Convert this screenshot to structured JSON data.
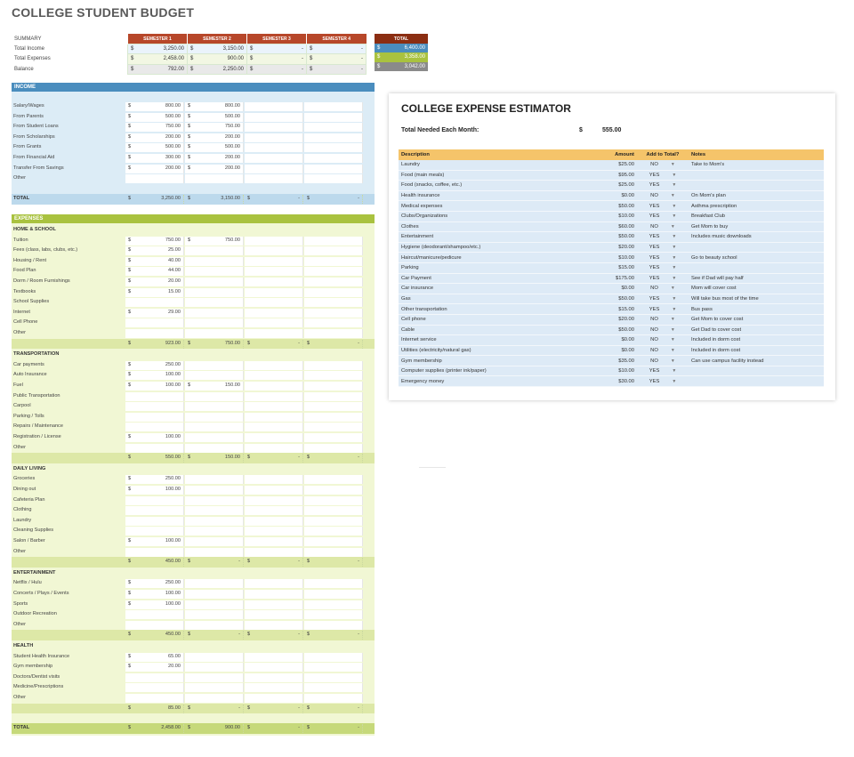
{
  "title": "COLLEGE STUDENT BUDGET",
  "currency": "$",
  "colors": {
    "semester_header": "#b7472a",
    "total_header": "#8b2e12",
    "income": "#4a8dbe",
    "expenses": "#a9c23f",
    "income_bg": "#dcecf6",
    "expenses_bg": "#f1f7d4",
    "sub_bg": "#dde8a7",
    "estimator_header": "#f5c46a",
    "estimator_row": "#ddeaf6"
  },
  "summary": {
    "label": "SUMMARY",
    "semesters": [
      "SEMESTER 1",
      "SEMESTER 2",
      "SEMESTER 3",
      "SEMESTER 4"
    ],
    "total_label": "TOTAL",
    "rows": [
      {
        "label": "Total Income",
        "values": [
          "3,250.00",
          "3,150.00",
          "-",
          "-"
        ],
        "total": "6,400.00"
      },
      {
        "label": "Total Expenses",
        "values": [
          "2,458.00",
          "900.00",
          "-",
          "-"
        ],
        "total": "3,358.00"
      },
      {
        "label": "Balance",
        "values": [
          "792.00",
          "2,250.00",
          "-",
          "-"
        ],
        "total": "3,042.00"
      }
    ]
  },
  "income": {
    "label": "INCOME",
    "rows": [
      {
        "label": "Salary/Wages",
        "values": [
          "800.00",
          "800.00",
          "",
          ""
        ]
      },
      {
        "label": "From Parents",
        "values": [
          "500.00",
          "500.00",
          "",
          ""
        ]
      },
      {
        "label": "From Student Loans",
        "values": [
          "750.00",
          "750.00",
          "",
          ""
        ]
      },
      {
        "label": "From Scholarships",
        "values": [
          "200.00",
          "200.00",
          "",
          ""
        ]
      },
      {
        "label": "From Grants",
        "values": [
          "500.00",
          "500.00",
          "",
          ""
        ]
      },
      {
        "label": "From Financial Aid",
        "values": [
          "300.00",
          "200.00",
          "",
          ""
        ]
      },
      {
        "label": "Transfer From Savings",
        "values": [
          "200.00",
          "200.00",
          "",
          ""
        ]
      },
      {
        "label": "Other",
        "values": [
          "",
          "",
          "",
          ""
        ]
      }
    ],
    "total_label": "TOTAL",
    "total": [
      "3,250.00",
      "3,150.00",
      "-",
      "-"
    ]
  },
  "expenses": {
    "label": "EXPENSES",
    "groups": [
      {
        "label": "HOME & SCHOOL",
        "rows": [
          {
            "label": "Tuition",
            "values": [
              "750.00",
              "750.00",
              "",
              ""
            ]
          },
          {
            "label": "Fees (class, labs, clubs, etc.)",
            "values": [
              "25.00",
              "",
              "",
              ""
            ]
          },
          {
            "label": "Housing / Rent",
            "values": [
              "40.00",
              "",
              "",
              ""
            ]
          },
          {
            "label": "Food Plan",
            "values": [
              "44.00",
              "",
              "",
              ""
            ]
          },
          {
            "label": "Dorm / Room Furnishings",
            "values": [
              "20.00",
              "",
              "",
              ""
            ]
          },
          {
            "label": "Textbooks",
            "values": [
              "15.00",
              "",
              "",
              ""
            ]
          },
          {
            "label": "School Supplies",
            "values": [
              "",
              "",
              "",
              ""
            ]
          },
          {
            "label": "Internet",
            "values": [
              "29.00",
              "",
              "",
              ""
            ]
          },
          {
            "label": "Cell Phone",
            "values": [
              "",
              "",
              "",
              ""
            ]
          },
          {
            "label": "Other",
            "values": [
              "",
              "",
              "",
              ""
            ]
          }
        ],
        "subtotal": [
          "923.00",
          "750.00",
          "-",
          "-"
        ]
      },
      {
        "label": "TRANSPORTATION",
        "rows": [
          {
            "label": "Car payments",
            "values": [
              "250.00",
              "",
              "",
              ""
            ]
          },
          {
            "label": "Auto Insurance",
            "values": [
              "100.00",
              "",
              "",
              ""
            ]
          },
          {
            "label": "Fuel",
            "values": [
              "100.00",
              "150.00",
              "",
              ""
            ]
          },
          {
            "label": "Public Transportation",
            "values": [
              "",
              "",
              "",
              ""
            ]
          },
          {
            "label": "Carpool",
            "values": [
              "",
              "",
              "",
              ""
            ]
          },
          {
            "label": "Parking / Tolls",
            "values": [
              "",
              "",
              "",
              ""
            ]
          },
          {
            "label": "Repairs / Maintenance",
            "values": [
              "",
              "",
              "",
              ""
            ]
          },
          {
            "label": "Registration / License",
            "values": [
              "100.00",
              "",
              "",
              ""
            ]
          },
          {
            "label": "Other",
            "values": [
              "",
              "",
              "",
              ""
            ]
          }
        ],
        "subtotal": [
          "550.00",
          "150.00",
          "-",
          "-"
        ]
      },
      {
        "label": "DAILY LIVING",
        "rows": [
          {
            "label": "Groceries",
            "values": [
              "250.00",
              "",
              "",
              ""
            ]
          },
          {
            "label": "Dining out",
            "values": [
              "100.00",
              "",
              "",
              ""
            ]
          },
          {
            "label": "Cafeteria Plan",
            "values": [
              "",
              "",
              "",
              ""
            ]
          },
          {
            "label": "Clothing",
            "values": [
              "",
              "",
              "",
              ""
            ]
          },
          {
            "label": "Laundry",
            "values": [
              "",
              "",
              "",
              ""
            ]
          },
          {
            "label": "Cleaning Supplies",
            "values": [
              "",
              "",
              "",
              ""
            ]
          },
          {
            "label": "Salon / Barber",
            "values": [
              "100.00",
              "",
              "",
              ""
            ]
          },
          {
            "label": "Other",
            "values": [
              "",
              "",
              "",
              ""
            ]
          }
        ],
        "subtotal": [
          "450.00",
          "-",
          "-",
          "-"
        ]
      },
      {
        "label": "ENTERTAINMENT",
        "rows": [
          {
            "label": "Netflix / Hulu",
            "values": [
              "250.00",
              "",
              "",
              ""
            ]
          },
          {
            "label": "Concerts / Plays / Events",
            "values": [
              "100.00",
              "",
              "",
              ""
            ]
          },
          {
            "label": "Sports",
            "values": [
              "100.00",
              "",
              "",
              ""
            ]
          },
          {
            "label": "Outdoor Recreation",
            "values": [
              "",
              "",
              "",
              ""
            ]
          },
          {
            "label": "Other",
            "values": [
              "",
              "",
              "",
              ""
            ]
          }
        ],
        "subtotal": [
          "450.00",
          "-",
          "-",
          "-"
        ]
      },
      {
        "label": "HEALTH",
        "rows": [
          {
            "label": "Student Health Insurance",
            "values": [
              "65.00",
              "",
              "",
              ""
            ]
          },
          {
            "label": "Gym membership",
            "values": [
              "20.00",
              "",
              "",
              ""
            ]
          },
          {
            "label": "Doctors/Dentist visits",
            "values": [
              "",
              "",
              "",
              ""
            ]
          },
          {
            "label": "Medicine/Prescriptions",
            "values": [
              "",
              "",
              "",
              ""
            ]
          },
          {
            "label": "Other",
            "values": [
              "",
              "",
              "",
              ""
            ]
          }
        ],
        "subtotal": [
          "85.00",
          "-",
          "-",
          "-"
        ]
      }
    ],
    "total_label": "TOTAL",
    "total": [
      "2,458.00",
      "900.00",
      "-",
      "-"
    ]
  },
  "estimator": {
    "title": "COLLEGE EXPENSE ESTIMATOR",
    "needed_label": "Total Needed Each Month:",
    "needed_value": "555.00",
    "headers": [
      "Description",
      "Amount",
      "Add to Total?",
      "Notes"
    ],
    "rows": [
      {
        "desc": "Laundry",
        "amount": "$25.00",
        "add": "NO",
        "note": "Take to Mom's"
      },
      {
        "desc": "Food (main meals)",
        "amount": "$95.00",
        "add": "YES",
        "note": ""
      },
      {
        "desc": "Food (snacks, coffee, etc.)",
        "amount": "$25.00",
        "add": "YES",
        "note": ""
      },
      {
        "desc": "Health insurance",
        "amount": "$0.00",
        "add": "NO",
        "note": "On Mom's plan"
      },
      {
        "desc": "Medical expenses",
        "amount": "$50.00",
        "add": "YES",
        "note": "Asthma prescription"
      },
      {
        "desc": "Clubs/Organizations",
        "amount": "$10.00",
        "add": "YES",
        "note": "Breakfast Club"
      },
      {
        "desc": "Clothes",
        "amount": "$60.00",
        "add": "NO",
        "note": "Get Mom to buy"
      },
      {
        "desc": "Entertainment",
        "amount": "$50.00",
        "add": "YES",
        "note": "Includes music downloads"
      },
      {
        "desc": "Hygiene (deodorant/shampoo/etc.)",
        "amount": "$20.00",
        "add": "YES",
        "note": ""
      },
      {
        "desc": "Haircut/manicure/pedicure",
        "amount": "$10.00",
        "add": "YES",
        "note": "Go to beauty school"
      },
      {
        "desc": "Parking",
        "amount": "$15.00",
        "add": "YES",
        "note": ""
      },
      {
        "desc": "Car Payment",
        "amount": "$175.00",
        "add": "YES",
        "note": "See if Dad will pay half"
      },
      {
        "desc": "Car insurance",
        "amount": "$0.00",
        "add": "NO",
        "note": "Mom will cover cost"
      },
      {
        "desc": "Gas",
        "amount": "$50.00",
        "add": "YES",
        "note": "Will take bus most of the time"
      },
      {
        "desc": "Other transportation",
        "amount": "$15.00",
        "add": "YES",
        "note": "Bus pass"
      },
      {
        "desc": "Cell phone",
        "amount": "$20.00",
        "add": "NO",
        "note": "Get Mom to cover cost"
      },
      {
        "desc": "Cable",
        "amount": "$50.00",
        "add": "NO",
        "note": "Get Dad to cover cost"
      },
      {
        "desc": "Internet service",
        "amount": "$0.00",
        "add": "NO",
        "note": "Included in dorm cost"
      },
      {
        "desc": "Utilities (electricity/natural gas)",
        "amount": "$0.00",
        "add": "NO",
        "note": "Included in dorm cost"
      },
      {
        "desc": "Gym membership",
        "amount": "$35.00",
        "add": "NO",
        "note": "Can use campus facility instead"
      },
      {
        "desc": "Computer supplies (printer ink/paper)",
        "amount": "$10.00",
        "add": "YES",
        "note": ""
      },
      {
        "desc": "Emergency money",
        "amount": "$30.00",
        "add": "YES",
        "note": ""
      }
    ]
  }
}
